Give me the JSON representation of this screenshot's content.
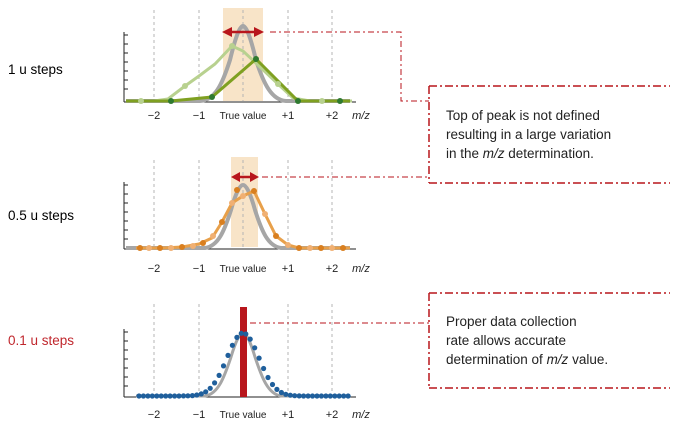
{
  "colors": {
    "highlight_band": "#f8e4c8",
    "arrow": "#b8161c",
    "dash_box": "#b8161c",
    "grid": "#b5b5b5",
    "gray_peak": "#a6a6a6",
    "green_dark": "#7fa021",
    "green_light": "#b8d18f",
    "green_dot": "#2f7a2f",
    "orange": "#e8a04a",
    "orange_dot": "#d97f1f",
    "blue_dot": "#1f5f9c",
    "bar": "#b8161c",
    "label_red": "#c0272d"
  },
  "rows": [
    {
      "label": "1 u steps",
      "ticks": [
        "−2",
        "−1",
        "True value",
        "+1",
        "+2"
      ],
      "unit": "m/z"
    },
    {
      "label": "0.5 u steps",
      "ticks": [
        "−2",
        "−1",
        "True value",
        "+1",
        "+2"
      ],
      "unit": "m/z"
    },
    {
      "label": "0.1 u steps",
      "ticks": [
        "−2",
        "−1",
        "True value",
        "+1",
        "+2"
      ],
      "unit": "m/z"
    }
  ],
  "callouts": [
    {
      "lines": [
        "Top of peak is not defined",
        "resulting in a large variation"
      ],
      "line3_prefix": "in the ",
      "line3_italic": "m/z",
      "line3_suffix": " determination."
    },
    {
      "lines": [
        "Proper data collection",
        "rate allows accurate"
      ],
      "line3_prefix": "determination of ",
      "line3_italic": "m/z",
      "line3_suffix": " value."
    }
  ]
}
